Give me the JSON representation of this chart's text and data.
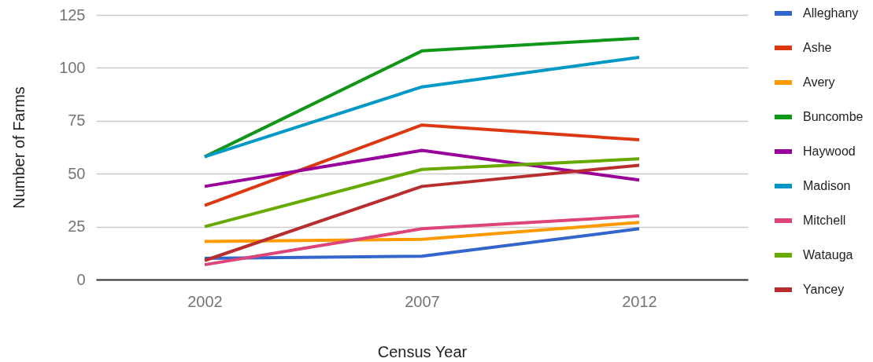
{
  "chart_data": {
    "type": "line",
    "xlabel": "Census Year",
    "ylabel": "Number of Farms",
    "categories": [
      "2002",
      "2007",
      "2012"
    ],
    "series": [
      {
        "name": "Alleghany",
        "color": "#3366cc",
        "values": [
          10,
          11,
          24
        ]
      },
      {
        "name": "Ashe",
        "color": "#dc3912",
        "values": [
          35,
          73,
          66
        ]
      },
      {
        "name": "Avery",
        "color": "#ff9900",
        "values": [
          18,
          19,
          27
        ]
      },
      {
        "name": "Buncombe",
        "color": "#109618",
        "values": [
          58,
          108,
          114
        ]
      },
      {
        "name": "Haywood",
        "color": "#990099",
        "values": [
          44,
          61,
          47
        ]
      },
      {
        "name": "Madison",
        "color": "#0099c6",
        "values": [
          58,
          91,
          105
        ]
      },
      {
        "name": "Mitchell",
        "color": "#dd4477",
        "values": [
          7,
          24,
          30
        ]
      },
      {
        "name": "Watauga",
        "color": "#66aa00",
        "values": [
          25,
          52,
          57
        ]
      },
      {
        "name": "Yancey",
        "color": "#b82e2e",
        "values": [
          9,
          44,
          54
        ]
      }
    ],
    "ylim": [
      0,
      125
    ],
    "yticks": [
      0,
      25,
      50,
      75,
      100,
      125
    ],
    "grid": "y",
    "legend": "right"
  }
}
